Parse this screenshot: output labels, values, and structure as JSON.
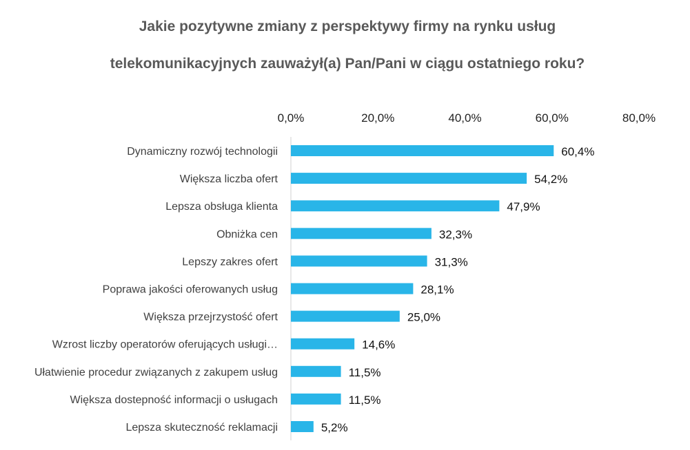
{
  "chart_data": {
    "type": "bar",
    "orientation": "horizontal",
    "title_lines": [
      "Jakie pozytywne zmiany z perspektywy firmy na rynku usług",
      "telekomunikacyjnych zauważył(a) Pan/Pani w ciągu ostatniego roku?"
    ],
    "categories": [
      "Dynamiczny rozwój technologii",
      "Większa liczba ofert",
      "Lepsza obsługa klienta",
      "Obniżka cen",
      "Lepszy zakres ofert",
      "Poprawa jakości oferowanych usług",
      "Większa przejrzystość ofert",
      "Wzrost liczby operatorów oferujących usługi…",
      "Ułatwienie procedur związanych z zakupem usług",
      "Większa dostepność informacji o usługach",
      "Lepsza skuteczność reklamacji"
    ],
    "values": [
      60.4,
      54.2,
      47.9,
      32.3,
      31.3,
      28.1,
      25.0,
      14.6,
      11.5,
      11.5,
      5.2
    ],
    "value_labels": [
      "60,4%",
      "54,2%",
      "47,9%",
      "32,3%",
      "31,3%",
      "28,1%",
      "25,0%",
      "14,6%",
      "11,5%",
      "11,5%",
      "5,2%"
    ],
    "xlim": [
      0,
      80
    ],
    "xticks": [
      0,
      20,
      40,
      60,
      80
    ],
    "xtick_labels": [
      "0,0%",
      "20,0%",
      "40,0%",
      "60,0%",
      "80,0%"
    ],
    "xaxis_position": "top",
    "grid": false,
    "legend": "none",
    "bar_color": "#29B5E8",
    "axis_color": "#D0D0D0"
  }
}
